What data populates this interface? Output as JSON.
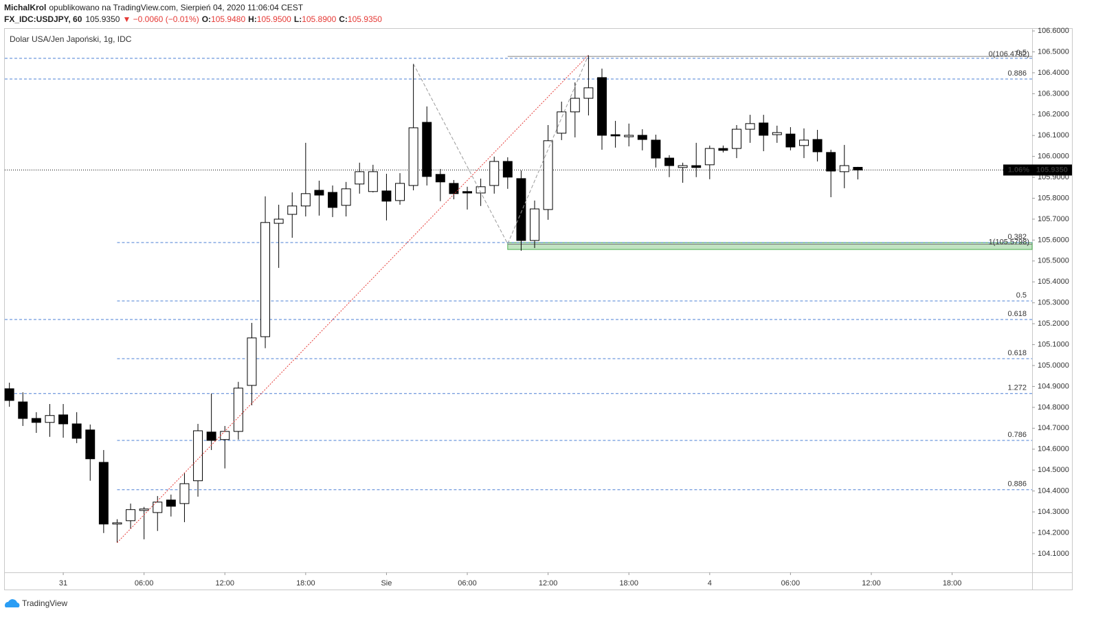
{
  "header": {
    "author": "MichalKrol",
    "published": "opublikowano na TradingView.com, Sierpień 04, 2020 11:06:04 CEST",
    "symbol": "FX_IDC:USDJPY, 60",
    "price": "105.9350",
    "change": "▼ −0.0060 (−0.01%)",
    "ohlc": [
      {
        "key": "O:",
        "value": "105.9480"
      },
      {
        "key": "H:",
        "value": "105.9500"
      },
      {
        "key": "L:",
        "value": "105.8900"
      },
      {
        "key": "C:",
        "value": "105.9350"
      }
    ]
  },
  "footer": {
    "brand": "TradingView"
  },
  "chart_data": {
    "type": "candlestick",
    "title": "Dolar USA/Jen Japoński, 1g, IDC",
    "up_color": "#ffffff",
    "down_color": "#000000",
    "wick_color": "#000000",
    "x": [
      -4,
      -3,
      -2,
      -1,
      0,
      1,
      2,
      3,
      4,
      5,
      6,
      7,
      8,
      9,
      10,
      11,
      12,
      13,
      14,
      15,
      16,
      17,
      18,
      19,
      20,
      21,
      22,
      23,
      24,
      25,
      26,
      27,
      28,
      29,
      30,
      31,
      32,
      33,
      34,
      35,
      36,
      37,
      38,
      39,
      40,
      41,
      42,
      43,
      44,
      45,
      46,
      47,
      48,
      49,
      50,
      51,
      52,
      53,
      54,
      55,
      56,
      57,
      58,
      59
    ],
    "open": [
      104.889,
      104.826,
      104.747,
      104.728,
      104.764,
      104.721,
      104.692,
      104.537,
      104.242,
      104.258,
      104.307,
      104.297,
      104.357,
      104.34,
      104.449,
      104.682,
      104.646,
      104.685,
      104.905,
      105.138,
      105.68,
      105.723,
      105.763,
      105.838,
      105.828,
      105.766,
      105.868,
      105.832,
      105.835,
      105.789,
      105.861,
      106.163,
      105.914,
      105.871,
      105.832,
      105.825,
      105.861,
      105.976,
      105.894,
      105.598,
      105.746,
      106.111,
      106.213,
      106.278,
      106.377,
      106.104,
      106.094,
      106.101,
      106.078,
      105.992,
      105.947,
      105.956,
      105.96,
      106.038,
      106.038,
      106.13,
      106.16,
      106.104,
      106.107,
      106.052,
      106.081,
      106.019,
      105.927,
      105.948
    ],
    "high": [
      104.918,
      104.872,
      104.777,
      104.816,
      104.816,
      104.777,
      104.718,
      104.596,
      104.265,
      104.34,
      104.324,
      104.376,
      104.383,
      104.488,
      104.721,
      104.866,
      104.711,
      104.922,
      105.204,
      105.809,
      105.769,
      105.828,
      106.065,
      105.884,
      105.861,
      105.878,
      105.97,
      105.96,
      105.917,
      105.92,
      106.443,
      106.239,
      105.94,
      105.887,
      105.855,
      105.894,
      105.999,
      105.996,
      105.933,
      105.789,
      106.15,
      106.262,
      106.354,
      106.485,
      106.42,
      106.17,
      106.157,
      106.13,
      106.104,
      106.006,
      105.97,
      106.065,
      106.052,
      106.052,
      106.15,
      106.199,
      106.199,
      106.147,
      106.14,
      106.134,
      106.127,
      106.032,
      106.055,
      105.95
    ],
    "low": [
      104.803,
      104.711,
      104.678,
      104.659,
      104.655,
      104.629,
      104.449,
      104.199,
      104.153,
      104.219,
      104.169,
      104.209,
      104.278,
      104.251,
      104.373,
      104.596,
      104.508,
      104.646,
      104.81,
      105.083,
      105.467,
      105.611,
      105.713,
      105.717,
      105.71,
      105.713,
      105.822,
      105.828,
      105.694,
      105.769,
      105.838,
      105.861,
      105.786,
      105.795,
      105.746,
      105.763,
      105.822,
      105.845,
      105.549,
      105.562,
      105.697,
      106.078,
      106.091,
      106.196,
      106.032,
      106.042,
      106.048,
      106.029,
      105.947,
      105.901,
      105.874,
      105.901,
      105.891,
      106.019,
      105.992,
      106.065,
      106.025,
      106.065,
      106.029,
      105.992,
      105.976,
      105.805,
      105.848,
      105.89
    ],
    "close": [
      104.833,
      104.747,
      104.728,
      104.761,
      104.721,
      104.652,
      104.554,
      104.242,
      104.248,
      104.311,
      104.314,
      104.347,
      104.327,
      104.435,
      104.688,
      104.642,
      104.685,
      104.892,
      105.132,
      105.684,
      105.7,
      105.763,
      105.822,
      105.815,
      105.756,
      105.845,
      105.927,
      105.927,
      105.786,
      105.871,
      106.137,
      105.904,
      105.878,
      105.822,
      105.825,
      105.855,
      105.976,
      105.901,
      105.598,
      105.749,
      106.075,
      106.213,
      106.278,
      106.328,
      106.101,
      106.098,
      106.101,
      106.081,
      105.992,
      105.956,
      105.956,
      105.947,
      106.038,
      106.029,
      106.13,
      106.157,
      106.101,
      106.114,
      106.045,
      106.078,
      106.022,
      105.93,
      105.956,
      105.935
    ],
    "xlim": [
      -4.34,
      71.94
    ],
    "xticks": [
      {
        "value": 0,
        "label": "31"
      },
      {
        "value": 6,
        "label": "06:00"
      },
      {
        "value": 12,
        "label": "12:00"
      },
      {
        "value": 18,
        "label": "18:00"
      },
      {
        "value": 24,
        "label": "Sie"
      },
      {
        "value": 30,
        "label": "06:00"
      },
      {
        "value": 36,
        "label": "12:00"
      },
      {
        "value": 42,
        "label": "18:00"
      },
      {
        "value": 48,
        "label": "4"
      },
      {
        "value": 54,
        "label": "06:00"
      },
      {
        "value": 60,
        "label": "12:00"
      },
      {
        "value": 66,
        "label": "18:00"
      }
    ],
    "ylim": [
      104.011,
      106.61
    ],
    "yticks": [
      {
        "value": 104.1,
        "label": "104.1000"
      },
      {
        "value": 104.2,
        "label": "104.2000"
      },
      {
        "value": 104.3,
        "label": "104.3000"
      },
      {
        "value": 104.4,
        "label": "104.4000"
      },
      {
        "value": 104.5,
        "label": "104.5000"
      },
      {
        "value": 104.6,
        "label": "104.6000"
      },
      {
        "value": 104.7,
        "label": "104.7000"
      },
      {
        "value": 104.8,
        "label": "104.8000"
      },
      {
        "value": 104.9,
        "label": "104.9000"
      },
      {
        "value": 105.0,
        "label": "105.0000"
      },
      {
        "value": 105.1,
        "label": "105.1000"
      },
      {
        "value": 105.2,
        "label": "105.2000"
      },
      {
        "value": 105.3,
        "label": "105.3000"
      },
      {
        "value": 105.4,
        "label": "105.4000"
      },
      {
        "value": 105.5,
        "label": "105.5000"
      },
      {
        "value": 105.6,
        "label": "105.6000"
      },
      {
        "value": 105.7,
        "label": "105.7000"
      },
      {
        "value": 105.8,
        "label": "105.8000"
      },
      {
        "value": 105.9,
        "label": "105.9000"
      },
      {
        "value": 106.0,
        "label": "106.0000"
      },
      {
        "value": 106.1,
        "label": "106.1000"
      },
      {
        "value": 106.2,
        "label": "106.2000"
      },
      {
        "value": 106.3,
        "label": "106.3000"
      },
      {
        "value": 106.4,
        "label": "106.4000"
      },
      {
        "value": 106.5,
        "label": "106.5000"
      },
      {
        "value": 106.6,
        "label": "106.6000"
      }
    ],
    "grid": false,
    "fib_color": "#4a7fd4",
    "fib_levels": [
      {
        "value": 106.469,
        "label": "0.5"
      },
      {
        "value": 106.37,
        "label": "0.886"
      },
      {
        "value": 105.588,
        "label": "0.382",
        "x": 4
      },
      {
        "value": 105.309,
        "label": "0.5",
        "x": 4
      },
      {
        "value": 105.22,
        "label": "0.618"
      },
      {
        "value": 105.033,
        "label": "0.618",
        "x": 4
      },
      {
        "value": 104.866,
        "label": "1.272"
      },
      {
        "value": 104.642,
        "label": "0.786",
        "x": 4
      },
      {
        "value": 104.406,
        "label": "0.886",
        "x": 4
      }
    ],
    "range_levels": {
      "x": 33,
      "color": "#808080",
      "levels": [
        {
          "value": 106.4782,
          "label": "0(106.4782)"
        },
        {
          "value": 105.5798,
          "label": "1(105.5798)"
        }
      ]
    },
    "zone": {
      "x": 33,
      "range": [
        105.555,
        105.588
      ],
      "color": "#4caf50"
    },
    "trend_line": {
      "x": [
        4,
        39
      ],
      "y": [
        104.153,
        106.485
      ],
      "color": "#e53935"
    },
    "pattern_line": {
      "x": [
        26,
        33,
        39
      ],
      "y": [
        106.443,
        105.582,
        106.485
      ],
      "color": "#999999"
    },
    "last_price": {
      "value": 105.935,
      "label": "105.9350",
      "change_label": "1.06%"
    }
  }
}
